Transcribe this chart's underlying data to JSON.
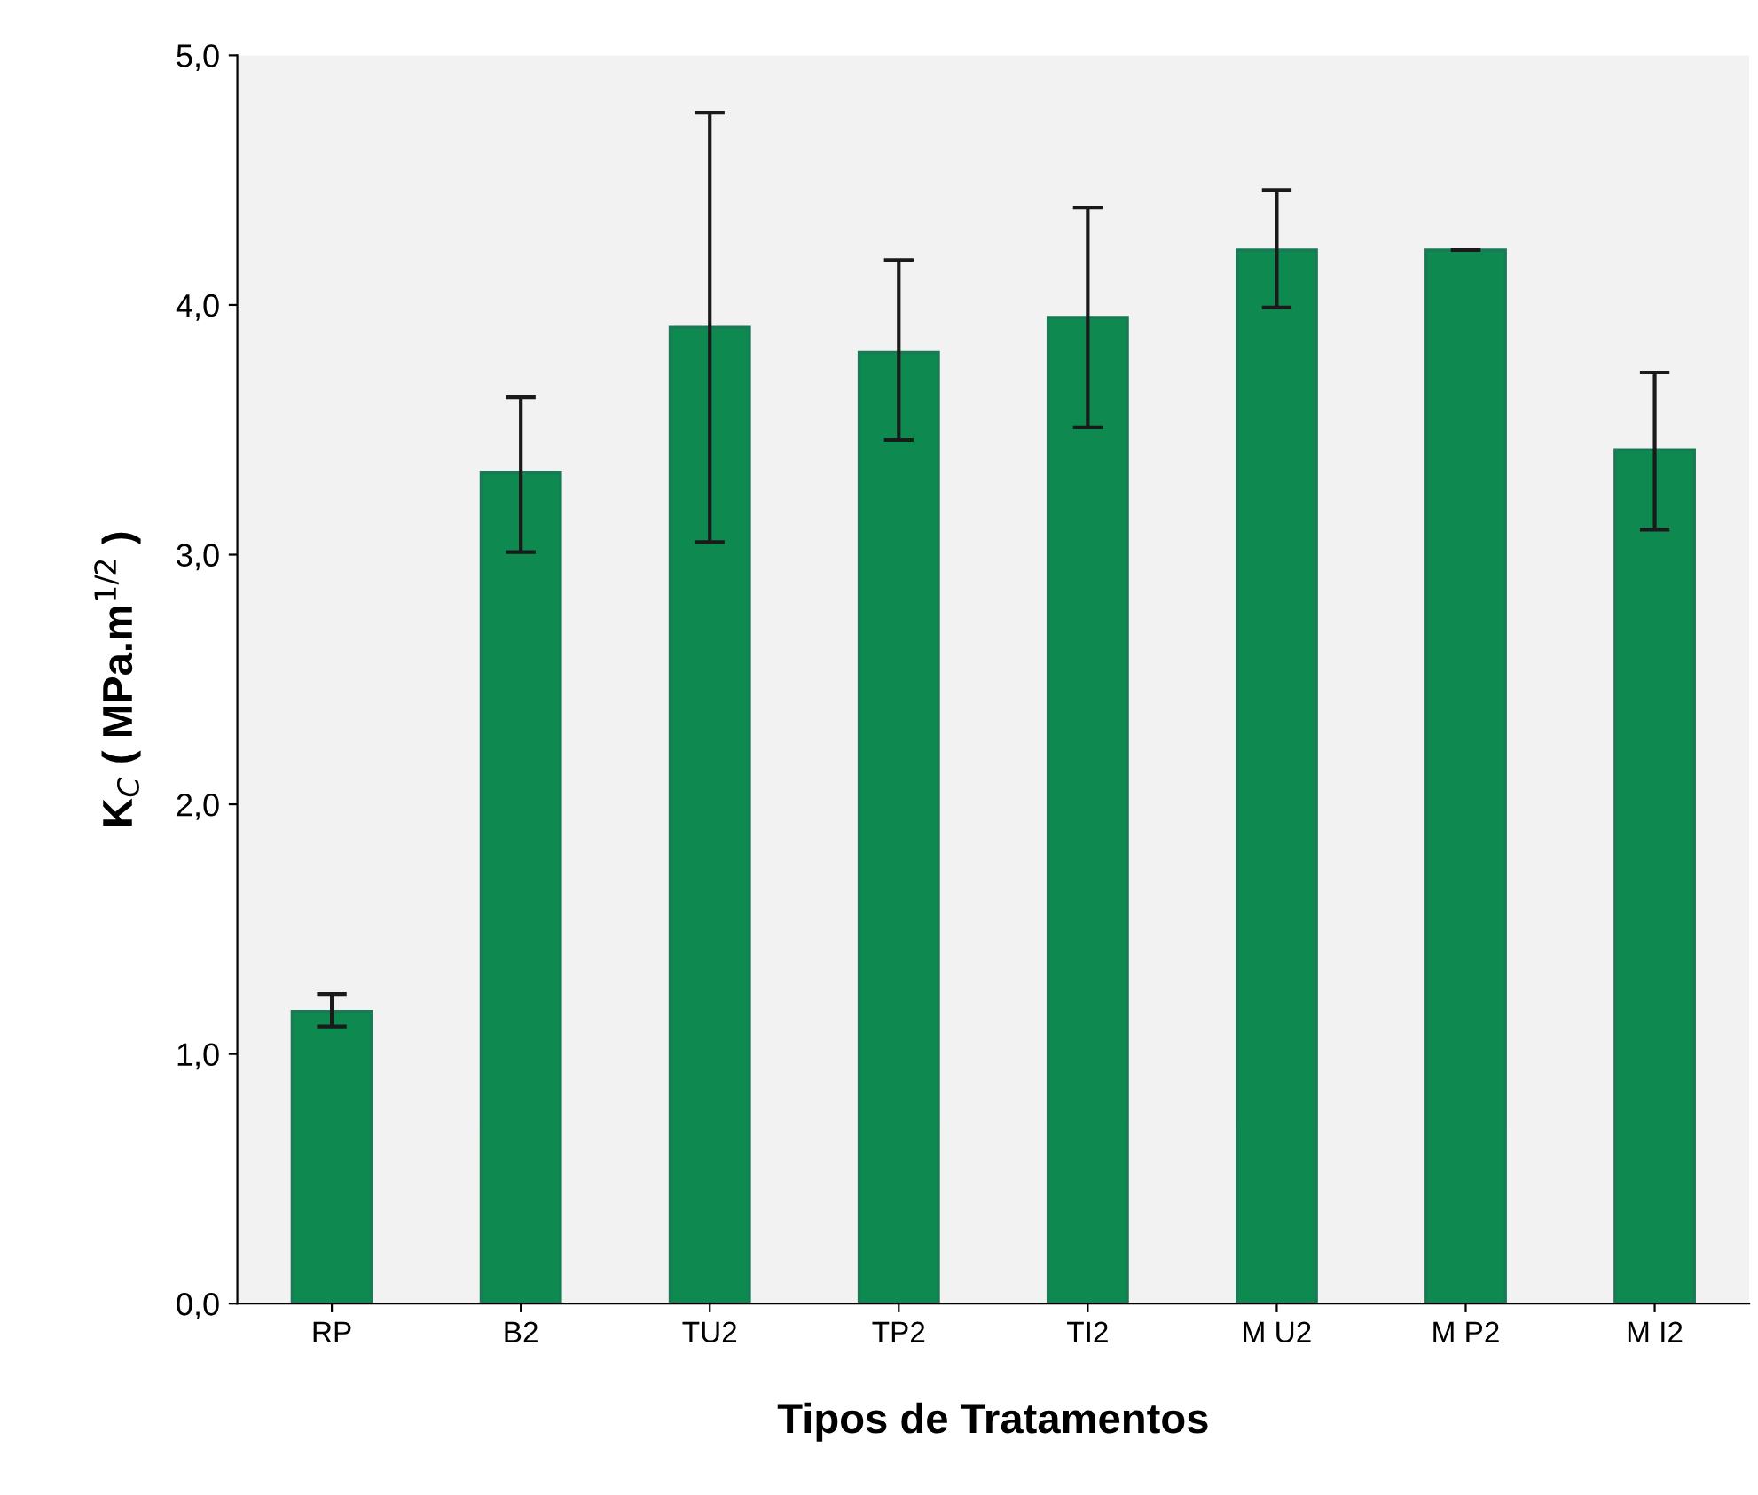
{
  "chart_data": {
    "type": "bar",
    "xlabel": "Tipos de Tratamentos",
    "ylabel": "K$_{C}$ ( MPa.m$^{1/2}$ )",
    "categories": [
      "RP",
      "B2",
      "TU2",
      "TP2",
      "TI2",
      "M U2",
      "M P2",
      "M I2"
    ],
    "values": [
      1.17,
      3.33,
      3.91,
      3.81,
      3.95,
      4.22,
      4.22,
      3.42
    ],
    "errors": [
      [
        1.11,
        1.24
      ],
      [
        3.01,
        3.63
      ],
      [
        3.05,
        4.77
      ],
      [
        3.46,
        4.18
      ],
      [
        3.51,
        4.39
      ],
      [
        3.99,
        4.46
      ],
      [
        4.22,
        4.22
      ],
      [
        3.1,
        3.73
      ]
    ],
    "color": "#0e8a50",
    "ylim": [
      0,
      5
    ],
    "yticks": [
      {
        "value": 0,
        "label": "0,0"
      },
      {
        "value": 1,
        "label": "1,0"
      },
      {
        "value": 2,
        "label": "2,0"
      },
      {
        "value": 3,
        "label": "3,0"
      },
      {
        "value": 4,
        "label": "4,0"
      },
      {
        "value": 5,
        "label": "5,0"
      }
    ],
    "grid": false,
    "legend": false
  }
}
